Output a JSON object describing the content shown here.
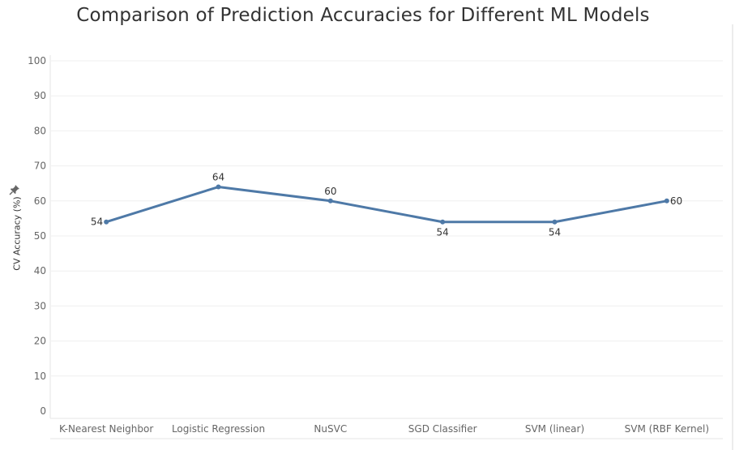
{
  "chart_data": {
    "type": "line",
    "title": "Comparison of Prediction Accuracies for Different ML Models",
    "ylabel": "CV Accuracy (%)",
    "xlabel": "",
    "categories": [
      "K-Nearest Neighbor",
      "Logistic Regression",
      "NuSVC",
      "SGD Classifier",
      "SVM (linear)",
      "SVM (RBF Kernel)"
    ],
    "values": [
      54,
      64,
      60,
      54,
      54,
      60
    ],
    "data_labels": [
      "54",
      "64",
      "60",
      "54",
      "54",
      "60"
    ],
    "label_positions": [
      "left",
      "above",
      "above",
      "below",
      "below",
      "right"
    ],
    "ylim": [
      0,
      100
    ],
    "yticks": [
      0,
      10,
      20,
      30,
      40,
      50,
      60,
      70,
      80,
      90,
      100
    ],
    "grid": true,
    "legend": "none",
    "line_color": "#4e79a7"
  }
}
